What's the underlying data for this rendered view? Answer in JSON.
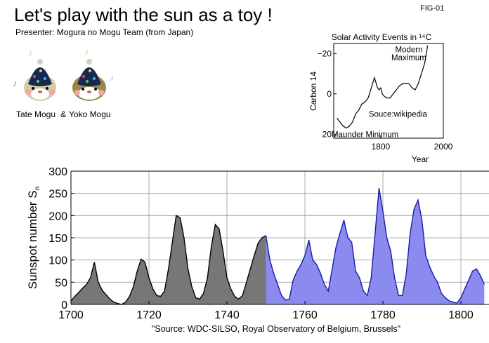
{
  "header": {
    "title": "Let's play with the sun as a toy !",
    "presenter": "Presenter: Mogura no Mogu Team (from Japan)",
    "figure_id": "FIG-01"
  },
  "mascots": {
    "left_name": "Tate Mogu",
    "separator": "&",
    "right_name": "Yoko Mogu"
  },
  "chart_data": [
    {
      "type": "line",
      "title": "Solar Activity Events in ¹⁴C",
      "xlabel": "Year",
      "ylabel": "Carbon 14",
      "xlim": [
        1650,
        2000
      ],
      "ylim": [
        22,
        -25
      ],
      "y_inverted": true,
      "xticks": [
        1800,
        2000
      ],
      "yticks": [
        -20,
        0,
        20
      ],
      "annotations": [
        {
          "text": "Modern",
          "x": 1890,
          "y": -22
        },
        {
          "text": "Maximum",
          "x": 1890,
          "y": -18
        },
        {
          "text": "Souce:wikipedia",
          "x": 1855,
          "y": 10
        },
        {
          "text": "Maunder Minimum",
          "x": 1750,
          "y": 20
        }
      ],
      "series": [
        {
          "color": "#000000",
          "x": [
            1660,
            1670,
            1680,
            1690,
            1700,
            1710,
            1720,
            1730,
            1740,
            1750,
            1760,
            1770,
            1780,
            1790,
            1795,
            1800,
            1805,
            1810,
            1820,
            1830,
            1840,
            1850,
            1860,
            1870,
            1880,
            1890,
            1900,
            1910,
            1920,
            1930,
            1940,
            1950
          ],
          "y": [
            12,
            14,
            16,
            17,
            16,
            14,
            10,
            8,
            5,
            4,
            2,
            -3,
            -8,
            -3,
            -2,
            -3,
            0,
            1,
            2,
            2,
            0,
            -2,
            -4,
            -5,
            -5,
            -5,
            -3,
            -2,
            -5,
            -10,
            -15,
            -24
          ]
        }
      ]
    },
    {
      "type": "area",
      "title": "",
      "xlabel": "\"Source: WDC-SILSO, Royal Observatory of Belgium, Brussels\"",
      "ylabel": "Sunspot number S",
      "ylabel_subscript": "n",
      "xlim": [
        1700,
        1806
      ],
      "ylim": [
        0,
        300
      ],
      "grid": true,
      "xticks": [
        1700,
        1720,
        1740,
        1760,
        1780,
        1800
      ],
      "yticks": [
        0,
        50,
        100,
        150,
        200,
        250,
        300
      ],
      "series": [
        {
          "fill": "#777777",
          "stroke": "#000000",
          "x": [
            1700,
            1701,
            1702,
            1703,
            1704,
            1705,
            1706,
            1707,
            1708,
            1709,
            1710,
            1711,
            1712,
            1713,
            1714,
            1715,
            1716,
            1717,
            1718,
            1719,
            1720,
            1721,
            1722,
            1723,
            1724,
            1725,
            1726,
            1727,
            1728,
            1729,
            1730,
            1731,
            1732,
            1733,
            1734,
            1735,
            1736,
            1737,
            1738,
            1739,
            1740,
            1741,
            1742,
            1743,
            1744,
            1745,
            1746,
            1747,
            1748,
            1749,
            1750
          ],
          "y": [
            8,
            18,
            27,
            37,
            45,
            60,
            95,
            50,
            32,
            22,
            12,
            5,
            2,
            0,
            5,
            18,
            40,
            75,
            102,
            95,
            60,
            35,
            20,
            18,
            30,
            80,
            140,
            200,
            195,
            150,
            80,
            40,
            15,
            12,
            25,
            60,
            130,
            180,
            170,
            120,
            60,
            35,
            18,
            12,
            20,
            50,
            80,
            110,
            138,
            150,
            155
          ]
        },
        {
          "fill": "#8b8bef",
          "stroke": "#1a1aa8",
          "x": [
            1750,
            1751,
            1752,
            1753,
            1754,
            1755,
            1756,
            1757,
            1758,
            1759,
            1760,
            1761,
            1762,
            1763,
            1764,
            1765,
            1766,
            1767,
            1768,
            1769,
            1770,
            1771,
            1772,
            1773,
            1774,
            1775,
            1776,
            1777,
            1778,
            1779,
            1780,
            1781,
            1782,
            1783,
            1784,
            1785,
            1786,
            1787,
            1788,
            1789,
            1790,
            1791,
            1792,
            1793,
            1794,
            1795,
            1796,
            1797,
            1798,
            1799,
            1800,
            1801,
            1802,
            1803,
            1804,
            1805,
            1806
          ],
          "y": [
            155,
            100,
            70,
            45,
            20,
            10,
            12,
            55,
            75,
            90,
            110,
            145,
            100,
            90,
            70,
            45,
            30,
            80,
            130,
            160,
            190,
            150,
            140,
            75,
            60,
            30,
            20,
            60,
            160,
            262,
            210,
            150,
            120,
            60,
            20,
            20,
            70,
            160,
            215,
            235,
            190,
            110,
            85,
            65,
            50,
            25,
            15,
            8,
            5,
            3,
            15,
            35,
            55,
            75,
            80,
            65,
            45
          ]
        }
      ]
    }
  ]
}
